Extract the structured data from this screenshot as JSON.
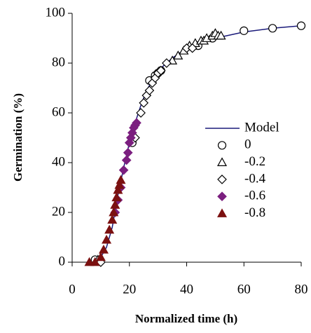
{
  "chart_data": {
    "type": "scatter",
    "x_label": "Normalized time (h)",
    "y_label": "Germination (%)",
    "xlim": [
      0,
      80
    ],
    "xticks": [
      0,
      20,
      40,
      60,
      80
    ],
    "ylim": [
      0,
      100
    ],
    "yticks": [
      0,
      20,
      40,
      60,
      80,
      100
    ],
    "series": [
      {
        "name": "Model",
        "color": "#1a1a7a",
        "marker": "line",
        "x": [
          6,
          8,
          10,
          12,
          14,
          16,
          18,
          20,
          22,
          24,
          26,
          28,
          30,
          35,
          40,
          45,
          50,
          60,
          70,
          80
        ],
        "values": [
          0,
          0.5,
          2,
          6,
          14,
          27,
          38,
          48,
          56,
          63,
          69,
          73,
          77,
          82,
          86,
          88,
          90,
          92.5,
          94,
          95
        ]
      },
      {
        "name": "0",
        "color": "#000000",
        "marker": "circle",
        "x": [
          8,
          21,
          27,
          29,
          30,
          31,
          44,
          49,
          60,
          70,
          80
        ],
        "values": [
          1,
          48,
          73,
          75,
          76,
          77,
          87,
          90,
          93,
          94,
          95
        ]
      },
      {
        "name": "-0.2",
        "color": "#000000",
        "marker": "triangle",
        "x": [
          9,
          35,
          37,
          39,
          41,
          43,
          45,
          46,
          47,
          49,
          50,
          51,
          52
        ],
        "values": [
          1,
          81,
          83,
          85,
          87,
          88,
          89,
          89,
          90,
          91,
          92,
          91,
          91
        ]
      },
      {
        "name": "-0.4",
        "color": "#000000",
        "marker": "diamond",
        "x": [
          10,
          22,
          24,
          25,
          26,
          27,
          28,
          29,
          30,
          31,
          33,
          40,
          42
        ],
        "values": [
          0,
          50,
          60,
          64,
          67,
          69,
          72,
          74,
          76,
          77,
          80,
          86,
          86
        ]
      },
      {
        "name": "-0.6",
        "color": "#7b1f7f",
        "marker": "diamond-filled",
        "x": [
          15,
          16,
          17,
          18,
          19,
          19.5,
          20,
          20.5,
          21,
          21.5,
          22,
          22.5
        ],
        "values": [
          20,
          25,
          30,
          37,
          41,
          44,
          48,
          50,
          52,
          54,
          55,
          56
        ]
      },
      {
        "name": "-0.8",
        "color": "#7b1010",
        "marker": "triangle-filled",
        "x": [
          6,
          8,
          10,
          11,
          12,
          13,
          14,
          14.5,
          15,
          15.5,
          16,
          16.5,
          17
        ],
        "values": [
          0,
          0,
          2,
          5,
          9,
          13,
          17,
          20,
          23,
          26,
          29,
          31,
          33
        ]
      }
    ]
  }
}
